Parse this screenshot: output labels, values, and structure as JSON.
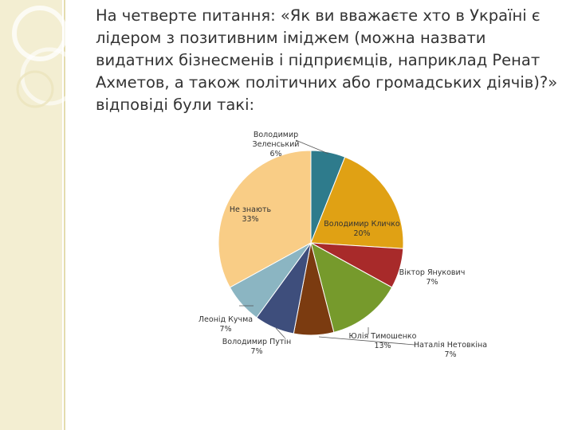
{
  "heading": "На четверте питання: «Як ви вважаєте хто в Україні є лідером з позитивним іміджем (можна назвати видатних бізнесменів і підприємців, наприклад Ренат Ахметов, а також політичних або громадських діячів)?» відповіді були такі:",
  "chart_data": {
    "type": "pie",
    "start": "12 o'clock, clockwise",
    "slices": [
      {
        "name": [
          "Володимир",
          "Зеленський"
        ],
        "pct_label": "6%",
        "value": 6,
        "color": "#2e7b8c"
      },
      {
        "name": [
          "Володимир Кличко"
        ],
        "pct_label": "20%",
        "value": 20,
        "color": "#e0a114"
      },
      {
        "name": [
          "Віктор Янукович"
        ],
        "pct_label": "7%",
        "value": 7,
        "color": "#a82a2a"
      },
      {
        "name": [
          "Юлія Тимошенко"
        ],
        "pct_label": "13%",
        "value": 13,
        "color": "#769a2c"
      },
      {
        "name": [
          "Наталія Нетовкіна"
        ],
        "pct_label": "7%",
        "value": 7,
        "color": "#7b3b10"
      },
      {
        "name": [
          "Володимир Путін"
        ],
        "pct_label": "7%",
        "value": 7,
        "color": "#3e4e7c"
      },
      {
        "name": [
          "Леонід Кучма"
        ],
        "pct_label": "7%",
        "value": 7,
        "color": "#8bb5c2"
      },
      {
        "name": [
          "Не знають"
        ],
        "pct_label": "33%",
        "value": 33,
        "color": "#f9cd86"
      }
    ]
  }
}
